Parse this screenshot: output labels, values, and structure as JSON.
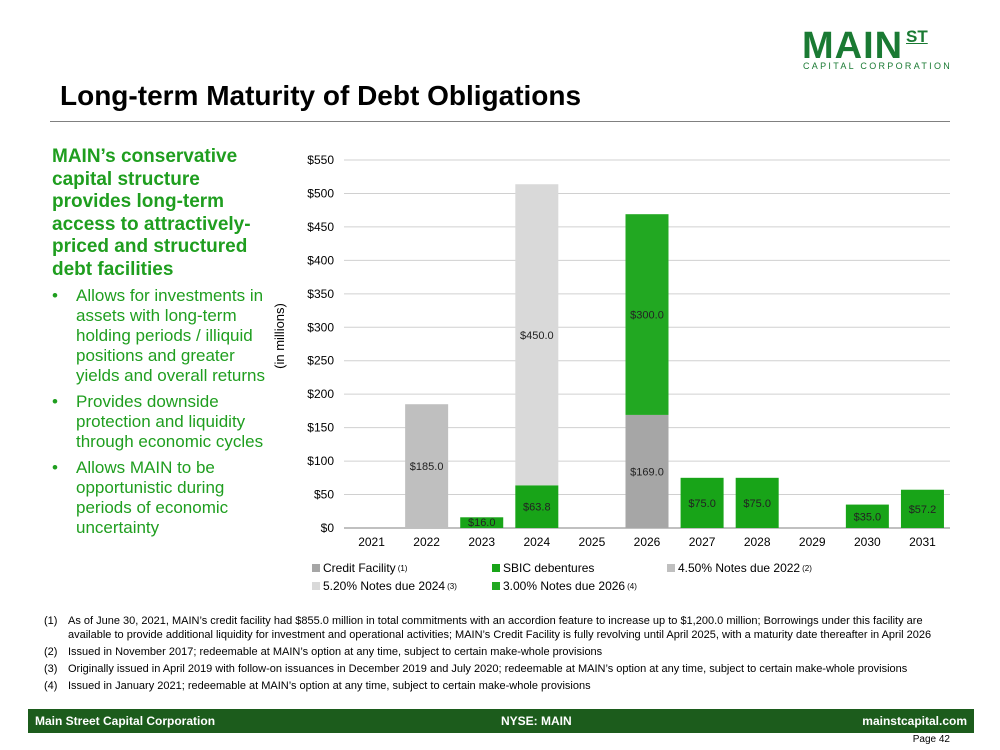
{
  "logo": {
    "main": "MAIN",
    "superscript": "ST",
    "subtitle": "CAPITAL CORPORATION"
  },
  "title": "Long-term Maturity of Debt Obligations",
  "headline": "MAIN’s conservative capital structure provides long-term access to attractively-priced and structured debt facilities",
  "bullet_glyph": "•",
  "bullets": [
    "Allows for investments in assets with long-term holding periods / illiquid positions and greater yields and overall returns",
    "Provides downside protection and liquidity through economic cycles",
    "Allows MAIN to be opportunistic during periods of economic uncertainty"
  ],
  "colors": {
    "brand_green": "#1a7a33",
    "text_green": "#1f9e1f",
    "credit_facility": "#a6a6a6",
    "sbic": "#18a418",
    "notes_2022": "#bfbfbf",
    "notes_2024": "#d9d9d9",
    "notes_2026": "#22a822",
    "footer": "#1c5c1c"
  },
  "chart_data": {
    "type": "bar",
    "stacked": true,
    "ylabel": "(in millions)",
    "ylim": [
      0,
      550
    ],
    "ytick_step": 50,
    "ytick_labels": [
      "$0",
      "$50",
      "$100",
      "$150",
      "$200",
      "$250",
      "$300",
      "$350",
      "$400",
      "$450",
      "$500",
      "$550"
    ],
    "grid": true,
    "legend_position": "bottom",
    "categories": [
      "2021",
      "2022",
      "2023",
      "2024",
      "2025",
      "2026",
      "2027",
      "2028",
      "2029",
      "2030",
      "2031"
    ],
    "series": [
      {
        "name": "Credit Facility",
        "superscript": "(1)",
        "color": "#a6a6a6",
        "values": [
          0,
          0,
          0,
          0,
          0,
          169.0,
          0,
          0,
          0,
          0,
          0
        ],
        "labels": [
          "",
          "",
          "",
          "",
          "",
          "$169.0",
          "",
          "",
          "",
          "",
          ""
        ]
      },
      {
        "name": "SBIC debentures",
        "superscript": "",
        "color": "#18a418",
        "values": [
          0,
          0,
          16.0,
          63.8,
          0,
          0,
          75.0,
          75.0,
          0,
          35.0,
          57.2
        ],
        "labels": [
          "",
          "",
          "$16.0",
          "$63.8",
          "",
          "",
          "$75.0",
          "$75.0",
          "",
          "$35.0",
          "$57.2"
        ]
      },
      {
        "name": "4.50% Notes due 2022",
        "superscript": "(2)",
        "color": "#bfbfbf",
        "values": [
          0,
          185.0,
          0,
          0,
          0,
          0,
          0,
          0,
          0,
          0,
          0
        ],
        "labels": [
          "",
          "$185.0",
          "",
          "",
          "",
          "",
          "",
          "",
          "",
          "",
          ""
        ]
      },
      {
        "name": "5.20% Notes due 2024",
        "superscript": "(3)",
        "color": "#d9d9d9",
        "values": [
          0,
          0,
          0,
          450.0,
          0,
          0,
          0,
          0,
          0,
          0,
          0
        ],
        "labels": [
          "",
          "",
          "",
          "$450.0",
          "",
          "",
          "",
          "",
          "",
          "",
          ""
        ]
      },
      {
        "name": "3.00% Notes due 2026",
        "superscript": "(4)",
        "color": "#22a822",
        "values": [
          0,
          0,
          0,
          0,
          0,
          300.0,
          0,
          0,
          0,
          0,
          0
        ],
        "labels": [
          "",
          "",
          "",
          "",
          "",
          "$300.0",
          "",
          "",
          "",
          "",
          ""
        ]
      }
    ]
  },
  "footnotes": [
    {
      "num": "(1)",
      "text": "As of June 30, 2021, MAIN’s credit facility had $855.0 million in total commitments with an accordion feature to increase up to $1,200.0 million; Borrowings under this facility are available to provide additional liquidity for investment and operational activities; MAIN’s Credit Facility is fully revolving until April 2025, with a maturity date thereafter in April 2026"
    },
    {
      "num": "(2)",
      "text": "Issued in November 2017; redeemable at MAIN’s option at any time, subject to certain make-whole provisions"
    },
    {
      "num": "(3)",
      "text": "Originally issued in April 2019 with follow-on issuances in December 2019 and July 2020; redeemable at MAIN’s option at any time, subject to certain make-whole provisions"
    },
    {
      "num": "(4)",
      "text": "Issued in January 2021; redeemable at MAIN’s option at any time, subject to certain make-whole provisions"
    }
  ],
  "footer": {
    "left": "Main Street Capital Corporation",
    "center": "NYSE: MAIN",
    "right": "mainstcapital.com"
  },
  "page_label": "Page  42"
}
